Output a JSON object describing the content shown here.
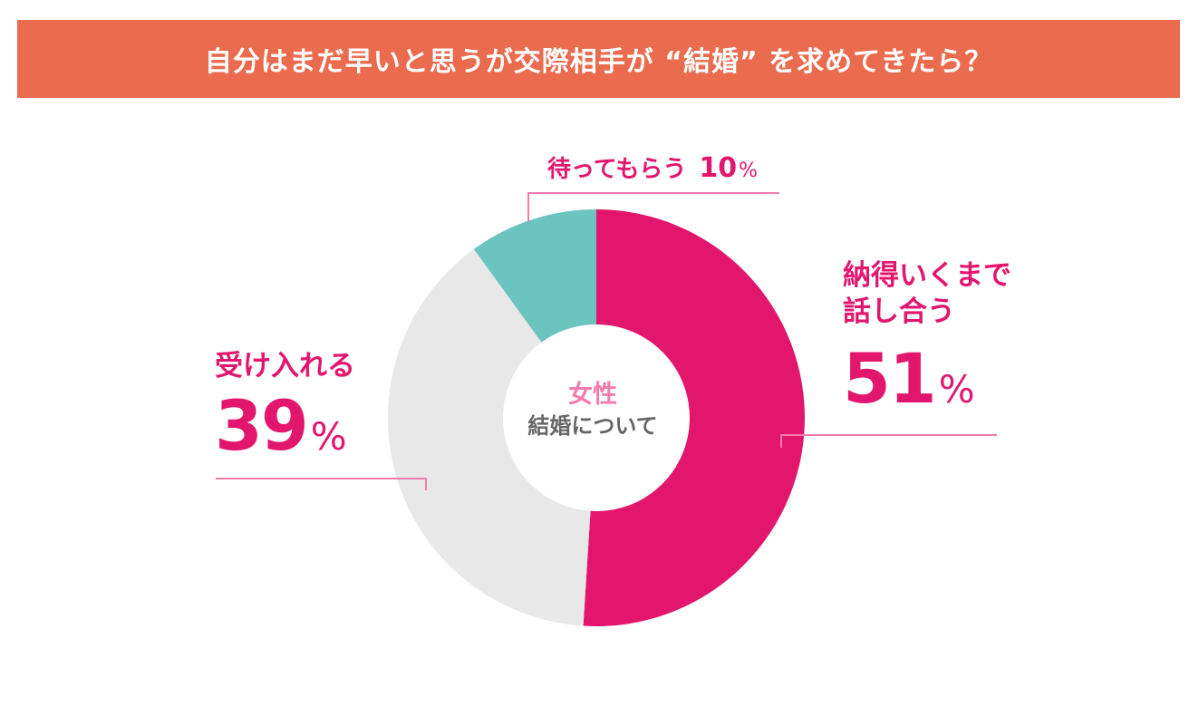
{
  "header": {
    "title": "自分はまだ早いと思うが交際相手が “結婚” を求めてきたら？"
  },
  "colors": {
    "banner": "#EA6B4D",
    "accent": "#E3166E",
    "center_label": "#F27BAE",
    "center_sub": "#666666"
  },
  "chart_data": {
    "type": "pie",
    "donut": true,
    "center_label": "女性",
    "center_sublabel": "結婚について",
    "slices": [
      {
        "label": "納得いくまで\n話し合う",
        "value": 51,
        "color": "#E3166E"
      },
      {
        "label": "受け入れる",
        "value": 39,
        "color": "#E8E8E8"
      },
      {
        "label": "待ってもらう",
        "value": 10,
        "color": "#6CC4C1"
      }
    ],
    "value_suffix": "%"
  }
}
